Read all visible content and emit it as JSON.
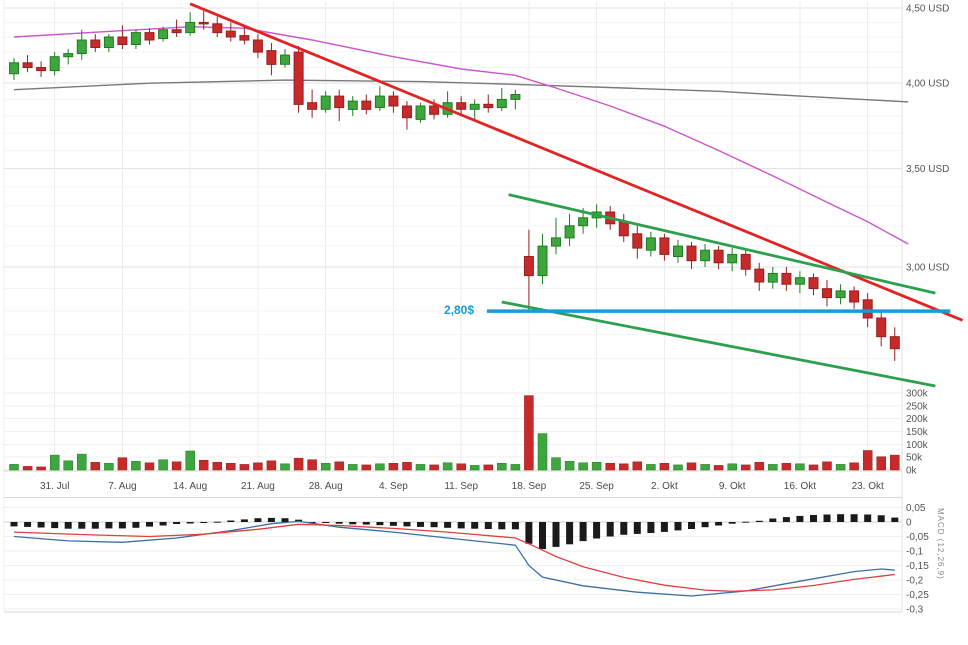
{
  "chart_data": {
    "type": "candlestick",
    "price_axis": {
      "unit": "USD",
      "scale": "log",
      "ticks": [
        {
          "label": "4,50 USD",
          "value": 4.5
        },
        {
          "label": "4,00 USD",
          "value": 4.0
        },
        {
          "label": "3,50 USD",
          "value": 3.5
        },
        {
          "label": "3,00 USD",
          "value": 3.0
        }
      ]
    },
    "date_axis": {
      "ticks": [
        {
          "label": "31. Jul",
          "i": 3
        },
        {
          "label": "7. Aug",
          "i": 8
        },
        {
          "label": "14. Aug",
          "i": 13
        },
        {
          "label": "21. Aug",
          "i": 18
        },
        {
          "label": "28. Aug",
          "i": 23
        },
        {
          "label": "4. Sep",
          "i": 28
        },
        {
          "label": "11. Sep",
          "i": 33
        },
        {
          "label": "18. Sep",
          "i": 38
        },
        {
          "label": "25. Sep",
          "i": 43
        },
        {
          "label": "2. Okt",
          "i": 48
        },
        {
          "label": "9. Okt",
          "i": 53
        },
        {
          "label": "16. Okt",
          "i": 58
        },
        {
          "label": "23. Okt",
          "i": 63
        }
      ]
    },
    "candles": [
      [
        4.06,
        4.16,
        4.02,
        4.13
      ],
      [
        4.13,
        4.18,
        4.07,
        4.1
      ],
      [
        4.1,
        4.14,
        4.04,
        4.08
      ],
      [
        4.08,
        4.2,
        4.05,
        4.17
      ],
      [
        4.17,
        4.22,
        4.12,
        4.19
      ],
      [
        4.19,
        4.35,
        4.15,
        4.28
      ],
      [
        4.28,
        4.32,
        4.2,
        4.23
      ],
      [
        4.23,
        4.32,
        4.2,
        4.3
      ],
      [
        4.3,
        4.38,
        4.22,
        4.25
      ],
      [
        4.25,
        4.35,
        4.22,
        4.33
      ],
      [
        4.33,
        4.36,
        4.25,
        4.28
      ],
      [
        4.29,
        4.37,
        4.27,
        4.35
      ],
      [
        4.35,
        4.42,
        4.3,
        4.33
      ],
      [
        4.33,
        4.47,
        4.31,
        4.4
      ],
      [
        4.4,
        4.48,
        4.35,
        4.39
      ],
      [
        4.39,
        4.44,
        4.3,
        4.33
      ],
      [
        4.34,
        4.4,
        4.27,
        4.3
      ],
      [
        4.31,
        4.38,
        4.25,
        4.28
      ],
      [
        4.28,
        4.32,
        4.16,
        4.2
      ],
      [
        4.21,
        4.26,
        4.05,
        4.12
      ],
      [
        4.12,
        4.22,
        4.1,
        4.18
      ],
      [
        4.2,
        4.24,
        3.82,
        3.87
      ],
      [
        3.88,
        3.96,
        3.79,
        3.84
      ],
      [
        3.84,
        3.95,
        3.82,
        3.92
      ],
      [
        3.92,
        3.96,
        3.77,
        3.85
      ],
      [
        3.84,
        3.92,
        3.8,
        3.89
      ],
      [
        3.89,
        3.93,
        3.81,
        3.84
      ],
      [
        3.85,
        3.98,
        3.83,
        3.92
      ],
      [
        3.92,
        3.95,
        3.82,
        3.86
      ],
      [
        3.86,
        3.89,
        3.72,
        3.79
      ],
      [
        3.78,
        3.88,
        3.76,
        3.86
      ],
      [
        3.86,
        3.9,
        3.78,
        3.81
      ],
      [
        3.81,
        3.95,
        3.79,
        3.88
      ],
      [
        3.88,
        3.92,
        3.8,
        3.84
      ],
      [
        3.84,
        3.9,
        3.78,
        3.87
      ],
      [
        3.87,
        3.93,
        3.82,
        3.85
      ],
      [
        3.85,
        3.97,
        3.83,
        3.9
      ],
      [
        3.9,
        3.96,
        3.84,
        3.93
      ],
      [
        3.05,
        3.18,
        2.8,
        2.96
      ],
      [
        2.96,
        3.16,
        2.92,
        3.1
      ],
      [
        3.1,
        3.24,
        3.06,
        3.14
      ],
      [
        3.14,
        3.26,
        3.1,
        3.2
      ],
      [
        3.2,
        3.29,
        3.16,
        3.24
      ],
      [
        3.24,
        3.31,
        3.19,
        3.27
      ],
      [
        3.27,
        3.3,
        3.18,
        3.21
      ],
      [
        3.22,
        3.26,
        3.12,
        3.15
      ],
      [
        3.16,
        3.2,
        3.04,
        3.09
      ],
      [
        3.08,
        3.17,
        3.05,
        3.14
      ],
      [
        3.14,
        3.16,
        3.03,
        3.06
      ],
      [
        3.05,
        3.13,
        3.02,
        3.1
      ],
      [
        3.1,
        3.12,
        2.99,
        3.03
      ],
      [
        3.03,
        3.11,
        3.0,
        3.08
      ],
      [
        3.08,
        3.1,
        2.99,
        3.02
      ],
      [
        3.02,
        3.09,
        2.98,
        3.06
      ],
      [
        3.06,
        3.08,
        2.96,
        2.99
      ],
      [
        2.99,
        3.02,
        2.89,
        2.93
      ],
      [
        2.93,
        3.0,
        2.9,
        2.97
      ],
      [
        2.97,
        3.0,
        2.89,
        2.92
      ],
      [
        2.92,
        2.98,
        2.88,
        2.95
      ],
      [
        2.95,
        2.97,
        2.87,
        2.9
      ],
      [
        2.9,
        2.94,
        2.82,
        2.86
      ],
      [
        2.86,
        2.92,
        2.83,
        2.89
      ],
      [
        2.89,
        2.91,
        2.81,
        2.84
      ],
      [
        2.85,
        2.88,
        2.73,
        2.77
      ],
      [
        2.77,
        2.8,
        2.65,
        2.69
      ],
      [
        2.69,
        2.73,
        2.59,
        2.64
      ]
    ],
    "volume": {
      "ticks": [
        {
          "label": "300k",
          "value": 300
        },
        {
          "label": "250k",
          "value": 250
        },
        {
          "label": "200k",
          "value": 200
        },
        {
          "label": "150k",
          "value": 150
        },
        {
          "label": "100k",
          "value": 100
        },
        {
          "label": "50k",
          "value": 50
        },
        {
          "label": "0k",
          "value": 0
        }
      ],
      "values_k": [
        22,
        14,
        12,
        58,
        36,
        62,
        30,
        26,
        48,
        34,
        28,
        40,
        32,
        74,
        38,
        30,
        26,
        22,
        28,
        36,
        24,
        46,
        40,
        26,
        32,
        22,
        20,
        24,
        26,
        30,
        22,
        20,
        28,
        24,
        18,
        20,
        26,
        22,
        290,
        142,
        48,
        34,
        28,
        30,
        26,
        24,
        32,
        22,
        26,
        20,
        28,
        22,
        18,
        24,
        20,
        30,
        22,
        26,
        24,
        20,
        32,
        22,
        28,
        76,
        52,
        58
      ]
    },
    "overlays": {
      "ma_fast_magenta": {
        "anchors": [
          [
            0,
            4.3
          ],
          [
            13,
            4.37
          ],
          [
            17,
            4.36
          ],
          [
            22,
            4.28
          ],
          [
            28,
            4.17
          ],
          [
            33,
            4.09
          ],
          [
            37,
            4.05
          ],
          [
            40,
            3.97
          ],
          [
            44,
            3.86
          ],
          [
            48,
            3.74
          ],
          [
            52,
            3.6
          ],
          [
            56,
            3.46
          ],
          [
            60,
            3.32
          ],
          [
            63,
            3.22
          ],
          [
            66,
            3.11
          ]
        ]
      },
      "ma_slow_gray": {
        "anchors": [
          [
            0,
            3.96
          ],
          [
            10,
            4.0
          ],
          [
            20,
            4.02
          ],
          [
            30,
            4.01
          ],
          [
            38,
            3.99
          ],
          [
            45,
            3.97
          ],
          [
            52,
            3.95
          ],
          [
            58,
            3.92
          ],
          [
            66,
            3.885
          ]
        ]
      },
      "trendline_red": {
        "from": {
          "i": 13,
          "p": 4.53
        },
        "to": {
          "i": 70,
          "p": 2.76
        }
      },
      "channel_upper_green": {
        "from": {
          "i": 36.5,
          "p": 3.36
        },
        "to": {
          "i": 68,
          "p": 2.88
        }
      },
      "channel_lower_green": {
        "from": {
          "i": 36,
          "p": 2.84
        },
        "to": {
          "i": 68,
          "p": 2.49
        }
      },
      "support_blue": {
        "price": 2.8,
        "label": "2,80$",
        "from_i": 34.9,
        "to_i": 69.1
      }
    },
    "macd": {
      "indicator_label": "MACD (12,26,9)",
      "ticks": [
        {
          "label": "0,05",
          "value": 0.05
        },
        {
          "label": "0",
          "value": 0
        },
        {
          "label": "-0,05",
          "value": -0.05
        },
        {
          "label": "-0,1",
          "value": -0.1
        },
        {
          "label": "-0,15",
          "value": -0.15
        },
        {
          "label": "-0,2",
          "value": -0.2
        },
        {
          "label": "-0,25",
          "value": -0.25
        },
        {
          "label": "-0,3",
          "value": -0.3
        }
      ],
      "histogram": [
        -0.015,
        -0.017,
        -0.019,
        -0.021,
        -0.023,
        -0.023,
        -0.023,
        -0.022,
        -0.022,
        -0.02,
        -0.016,
        -0.012,
        -0.007,
        -0.005,
        -0.003,
        0.001,
        0.005,
        0.009,
        0.013,
        0.014,
        0.013,
        0.008,
        0.0,
        -0.003,
        -0.006,
        -0.008,
        -0.009,
        -0.011,
        -0.013,
        -0.015,
        -0.017,
        -0.018,
        -0.02,
        -0.022,
        -0.023,
        -0.024,
        -0.025,
        -0.025,
        -0.075,
        -0.093,
        -0.086,
        -0.077,
        -0.066,
        -0.057,
        -0.05,
        -0.044,
        -0.041,
        -0.038,
        -0.034,
        -0.029,
        -0.024,
        -0.018,
        -0.012,
        -0.006,
        0.001,
        0.004,
        0.012,
        0.017,
        0.021,
        0.024,
        0.026,
        0.027,
        0.027,
        0.026,
        0.023,
        0.015
      ],
      "macd_anchors": [
        [
          0,
          -0.05
        ],
        [
          4,
          -0.065
        ],
        [
          8,
          -0.07
        ],
        [
          12,
          -0.055
        ],
        [
          16,
          -0.03
        ],
        [
          19,
          -0.006
        ],
        [
          21,
          0.002
        ],
        [
          24,
          -0.018
        ],
        [
          28,
          -0.035
        ],
        [
          32,
          -0.055
        ],
        [
          37,
          -0.08
        ],
        [
          38,
          -0.15
        ],
        [
          39,
          -0.19
        ],
        [
          42,
          -0.22
        ],
        [
          46,
          -0.242
        ],
        [
          50,
          -0.255
        ],
        [
          54,
          -0.238
        ],
        [
          58,
          -0.204
        ],
        [
          62,
          -0.171
        ],
        [
          64,
          -0.162
        ],
        [
          65,
          -0.166
        ]
      ],
      "signal_anchors": [
        [
          0,
          -0.035
        ],
        [
          6,
          -0.045
        ],
        [
          10,
          -0.05
        ],
        [
          14,
          -0.042
        ],
        [
          18,
          -0.025
        ],
        [
          21,
          -0.008
        ],
        [
          24,
          -0.012
        ],
        [
          28,
          -0.022
        ],
        [
          32,
          -0.035
        ],
        [
          37,
          -0.055
        ],
        [
          38,
          -0.075
        ],
        [
          40,
          -0.119
        ],
        [
          42,
          -0.154
        ],
        [
          45,
          -0.191
        ],
        [
          48,
          -0.218
        ],
        [
          51,
          -0.235
        ],
        [
          53,
          -0.239
        ],
        [
          56,
          -0.234
        ],
        [
          59,
          -0.219
        ],
        [
          62,
          -0.198
        ],
        [
          65,
          -0.181
        ]
      ]
    }
  },
  "colors": {
    "candle_up": "#3fa53f",
    "candle_up_border": "#1e7d1e",
    "candle_down": "#c62a2a",
    "candle_down_border": "#962020",
    "histogram": "#1a1a1a",
    "macd_line": "#3b6ea5",
    "signal_line": "#e04040",
    "ma_fast": "#cc55cc",
    "ma_slow": "#787878",
    "trendline": "#e02424",
    "channel": "#2da04e",
    "support": "#189bd8",
    "grid_major": "#e2e2e2",
    "grid_minor": "#f4f4f4",
    "separator": "#d8d8d8",
    "axis_text": "#555555"
  }
}
